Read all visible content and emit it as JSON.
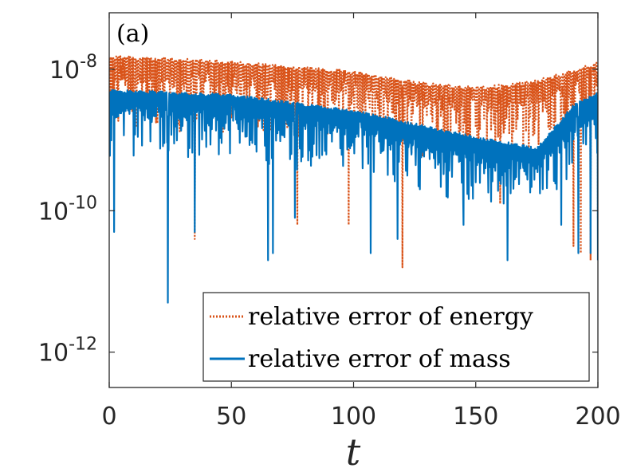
{
  "chart_data": {
    "type": "line",
    "panel_label": "(a)",
    "xlabel": "t",
    "ylabel": "",
    "xlim": [
      0,
      200
    ],
    "ylim_log10": [
      -12.5,
      -7.2
    ],
    "y_scale": "log",
    "x_ticks": [
      {
        "value": 0,
        "label": "0"
      },
      {
        "value": 50,
        "label": "50"
      },
      {
        "value": 100,
        "label": "100"
      },
      {
        "value": 150,
        "label": "150"
      },
      {
        "value": 200,
        "label": "200"
      }
    ],
    "y_ticks": [
      {
        "value": -8,
        "base": "10",
        "exp": "-8"
      },
      {
        "value": -10,
        "base": "10",
        "exp": "-10"
      },
      {
        "value": -12,
        "base": "10",
        "exp": "-12"
      }
    ],
    "legend_position": "bottom-right",
    "series": [
      {
        "name": "relative error of energy",
        "style": "dotted",
        "color": "#D95319",
        "envelope_log10": [
          [
            0,
            -7.8
          ],
          [
            50,
            -7.88
          ],
          [
            100,
            -8.02
          ],
          [
            125,
            -8.17
          ],
          [
            150,
            -8.25
          ],
          [
            175,
            -8.15
          ],
          [
            200,
            -7.9
          ]
        ],
        "dips": [
          [
            35,
            -10.4
          ],
          [
            77,
            -10.2
          ],
          [
            98,
            -10.2
          ],
          [
            120,
            -10.8
          ],
          [
            160,
            -9.9
          ],
          [
            185,
            -9.4
          ],
          [
            190,
            -10.5
          ],
          [
            193,
            -10.6
          ],
          [
            197,
            -10.7
          ],
          [
            200,
            -10.1
          ]
        ]
      },
      {
        "name": "relative error of mass",
        "style": "solid",
        "color": "#0072BD",
        "envelope_log10": [
          [
            0,
            -8.28
          ],
          [
            50,
            -8.35
          ],
          [
            100,
            -8.57
          ],
          [
            150,
            -8.95
          ],
          [
            175,
            -9.1
          ],
          [
            190,
            -8.5
          ],
          [
            200,
            -8.3
          ]
        ],
        "dips": [
          [
            2,
            -10.3
          ],
          [
            24,
            -11.3
          ],
          [
            35,
            -10.3
          ],
          [
            65,
            -10.7
          ],
          [
            67,
            -10.6
          ],
          [
            76,
            -10.1
          ],
          [
            107,
            -10.6
          ],
          [
            118,
            -10.4
          ],
          [
            145,
            -10.2
          ],
          [
            163,
            -10.7
          ],
          [
            185,
            -10.2
          ],
          [
            192,
            -10.6
          ],
          [
            197,
            -10.6
          ],
          [
            200,
            -10.7
          ]
        ]
      }
    ]
  }
}
